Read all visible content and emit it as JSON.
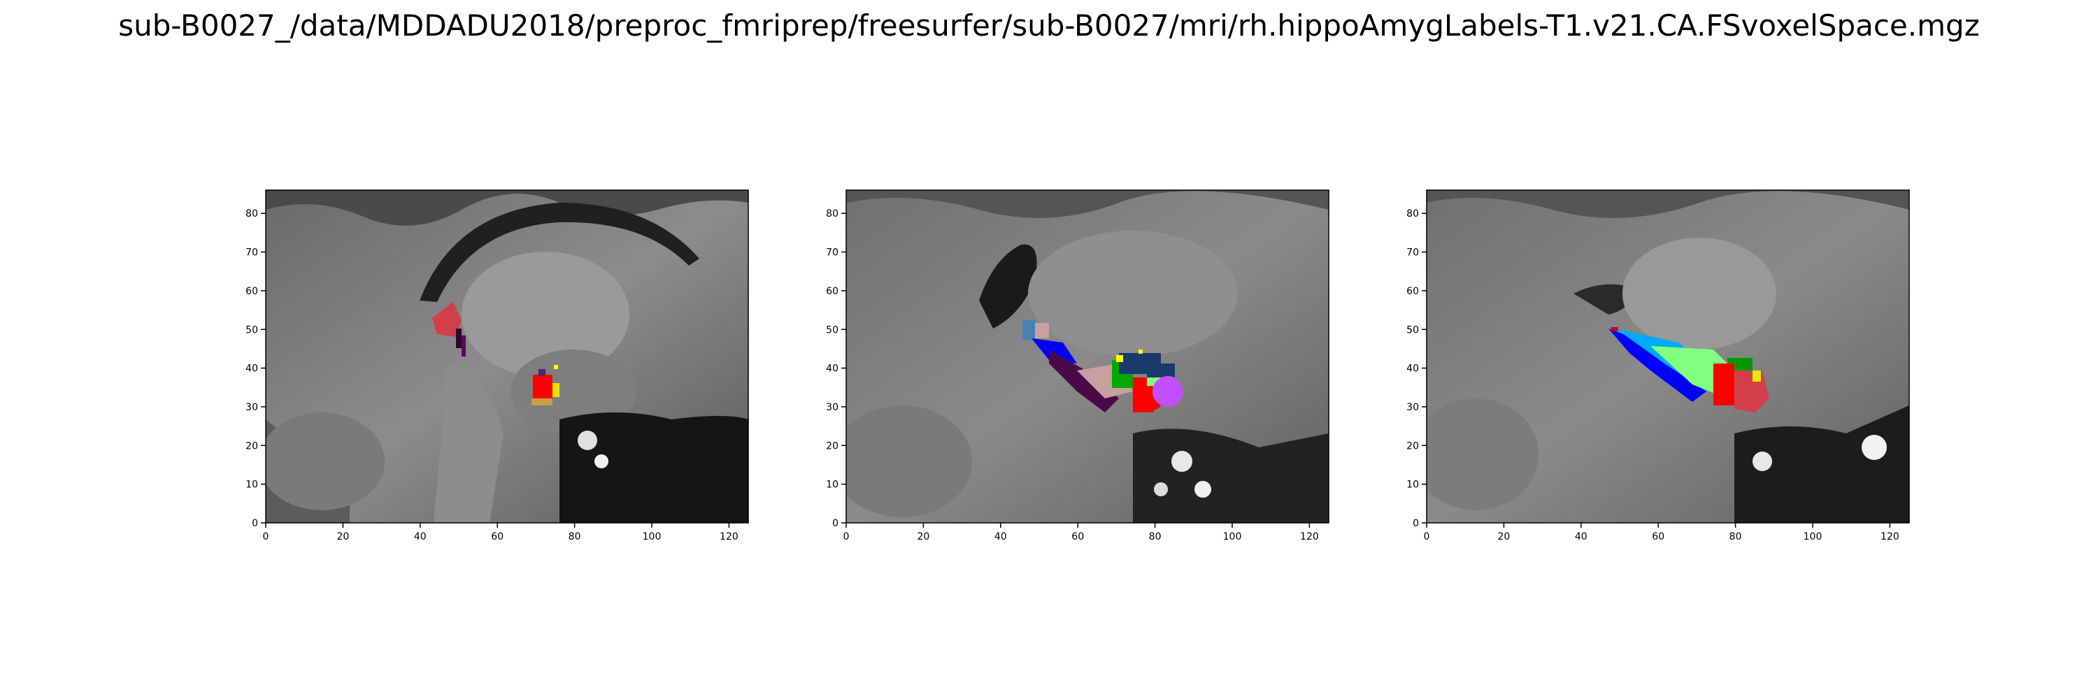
{
  "figure": {
    "title": "sub-B0027_/data/MDDADU2018/preproc_fmriprep/freesurfer/sub-B0027/mri/rh.hippoAmygLabels-T1.v21.CA.FSvoxelSpace.mgz"
  },
  "panels": [
    {
      "name": "panel-1",
      "x_ticks": [
        "0",
        "20",
        "40",
        "60",
        "80",
        "100",
        "120"
      ],
      "y_ticks": [
        "0",
        "10",
        "20",
        "30",
        "40",
        "50",
        "60",
        "70",
        "80"
      ],
      "xlim": [
        0,
        125
      ],
      "ylim": [
        0,
        86
      ]
    },
    {
      "name": "panel-2",
      "x_ticks": [
        "0",
        "20",
        "40",
        "60",
        "80",
        "100",
        "120"
      ],
      "y_ticks": [
        "0",
        "10",
        "20",
        "30",
        "40",
        "50",
        "60",
        "70",
        "80"
      ],
      "xlim": [
        0,
        125
      ],
      "ylim": [
        0,
        86
      ]
    },
    {
      "name": "panel-3",
      "x_ticks": [
        "0",
        "20",
        "40",
        "60",
        "80",
        "100",
        "120"
      ],
      "y_ticks": [
        "0",
        "10",
        "20",
        "30",
        "40",
        "50",
        "60",
        "70",
        "80"
      ],
      "xlim": [
        0,
        125
      ],
      "ylim": [
        0,
        86
      ]
    }
  ]
}
